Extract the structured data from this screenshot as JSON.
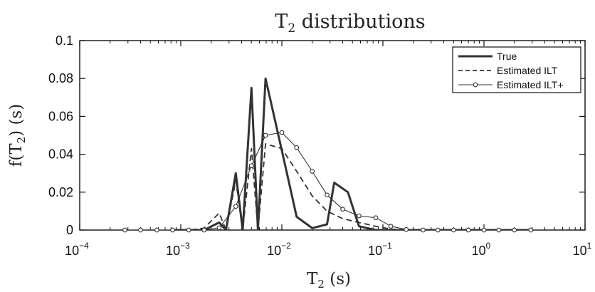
{
  "chart_data": {
    "type": "line",
    "title_main": "T",
    "title_sub": "2",
    "title_rest": " distributions",
    "xlabel_main": "T",
    "xlabel_sub": "2",
    "xlabel_rest": " (s)",
    "ylabel_main": "f(T",
    "ylabel_sub": "2",
    "ylabel_rest": ") (s)",
    "x_scale": "log",
    "xlim": [
      0.0001,
      10
    ],
    "ylim": [
      0,
      0.1
    ],
    "x_ticks": [
      {
        "base": "10",
        "exp": "−4",
        "value": 0.0001
      },
      {
        "base": "10",
        "exp": "−3",
        "value": 0.001
      },
      {
        "base": "10",
        "exp": "−2",
        "value": 0.01
      },
      {
        "base": "10",
        "exp": "−1",
        "value": 0.1
      },
      {
        "base": "10",
        "exp": "0",
        "value": 1
      },
      {
        "base": "10",
        "exp": "1",
        "value": 10
      }
    ],
    "y_ticks": [
      {
        "label": "0",
        "value": 0
      },
      {
        "label": "0.02",
        "value": 0.02
      },
      {
        "label": "0.04",
        "value": 0.04
      },
      {
        "label": "0.06",
        "value": 0.06
      },
      {
        "label": "0.08",
        "value": 0.08
      },
      {
        "label": "0.1",
        "value": 0.1
      }
    ],
    "legend_position": "top-right",
    "series": [
      {
        "name": "True",
        "style": "solid-thick",
        "x": [
          0.0028,
          0.0041,
          0.0058,
          0.00083,
          0.0012,
          0.0017,
          0.0024,
          0.0035,
          0.005,
          0.0069,
          0.01,
          0.014,
          0.02,
          0.028,
          0.033,
          0.045,
          0.058,
          0.085,
          0.12,
          0.17,
          0.25,
          0.35,
          0.5,
          0.7,
          1.0,
          1.4,
          2.0,
          2.9
        ],
        "y": [
          0,
          0,
          0,
          0,
          0,
          0,
          0.004,
          0.03,
          0.075,
          0.08,
          0.042,
          0.007,
          0.001,
          0.003,
          0.025,
          0.02,
          0.002,
          0,
          0,
          0,
          0,
          0,
          0,
          0,
          0,
          0,
          0,
          0
        ],
        "color": "#333333"
      },
      {
        "name": "Estimated ILT",
        "style": "dashed",
        "x": [
          0.0028,
          0.0041,
          0.0058,
          0.00083,
          0.0012,
          0.0017,
          0.0024,
          0.0035,
          0.005,
          0.0069,
          0.01,
          0.014,
          0.02,
          0.028,
          0.04,
          0.058,
          0.085,
          0.12,
          0.17,
          0.25,
          0.35,
          0.5,
          0.7,
          1.0,
          1.4,
          2.0,
          2.9
        ],
        "y": [
          0,
          0,
          0,
          0,
          0,
          0.001,
          0.009,
          0.026,
          0.043,
          0.0455,
          0.043,
          0.031,
          0.018,
          0.01,
          0.006,
          0.004,
          0.002,
          0.0005,
          0,
          0,
          0,
          0,
          0,
          0,
          0,
          0,
          0
        ],
        "color": "#333333"
      },
      {
        "name": "Estimated ILT+",
        "style": "solid-circles",
        "x": [
          0.00028,
          0.0004,
          0.00058,
          0.00083,
          0.0012,
          0.0017,
          0.0024,
          0.0035,
          0.005,
          0.0069,
          0.01,
          0.014,
          0.02,
          0.028,
          0.04,
          0.058,
          0.085,
          0.12,
          0.17,
          0.25,
          0.35,
          0.5,
          0.7,
          1.0,
          1.4,
          2.0,
          2.9
        ],
        "y": [
          0,
          0,
          0,
          0,
          0,
          0,
          0.0012,
          0.0125,
          0.034,
          0.05,
          0.0515,
          0.0435,
          0.031,
          0.0185,
          0.011,
          0.0075,
          0.0065,
          0.002,
          0.0003,
          0,
          0,
          0,
          0,
          0,
          0,
          0,
          0
        ],
        "color": "#333333"
      }
    ]
  }
}
